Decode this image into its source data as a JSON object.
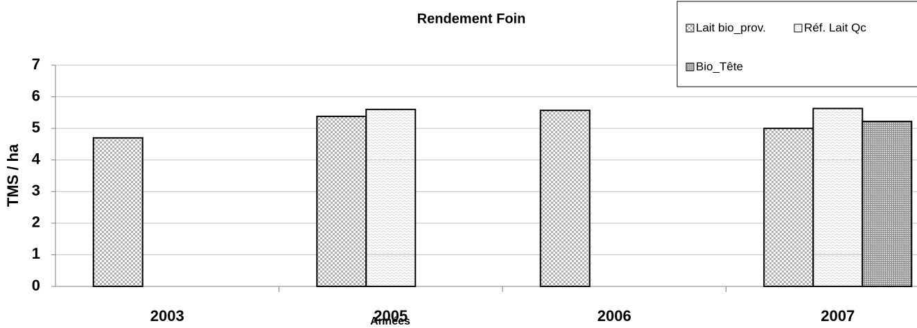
{
  "chart_data": {
    "type": "bar",
    "title": "Rendement Foin",
    "x_label": "Années",
    "y_label": "TMS / ha",
    "categories": [
      "2003",
      "2005",
      "2006",
      "2007"
    ],
    "series": [
      {
        "name": "Lait bio_prov.",
        "color": "#b0b0b0",
        "values": [
          4.7,
          5.38,
          5.57,
          5.0
        ]
      },
      {
        "name": "Réf. Lait Qc",
        "color": "#d8d8d8",
        "values": [
          null,
          5.6,
          null,
          5.63
        ]
      },
      {
        "name": "Bio_Tête",
        "color": "#909090",
        "values": [
          null,
          null,
          null,
          5.22
        ]
      }
    ],
    "ylim": [
      0,
      7
    ],
    "yticks": [
      0,
      1,
      2,
      3,
      4,
      5,
      6,
      7
    ],
    "grid": true
  }
}
